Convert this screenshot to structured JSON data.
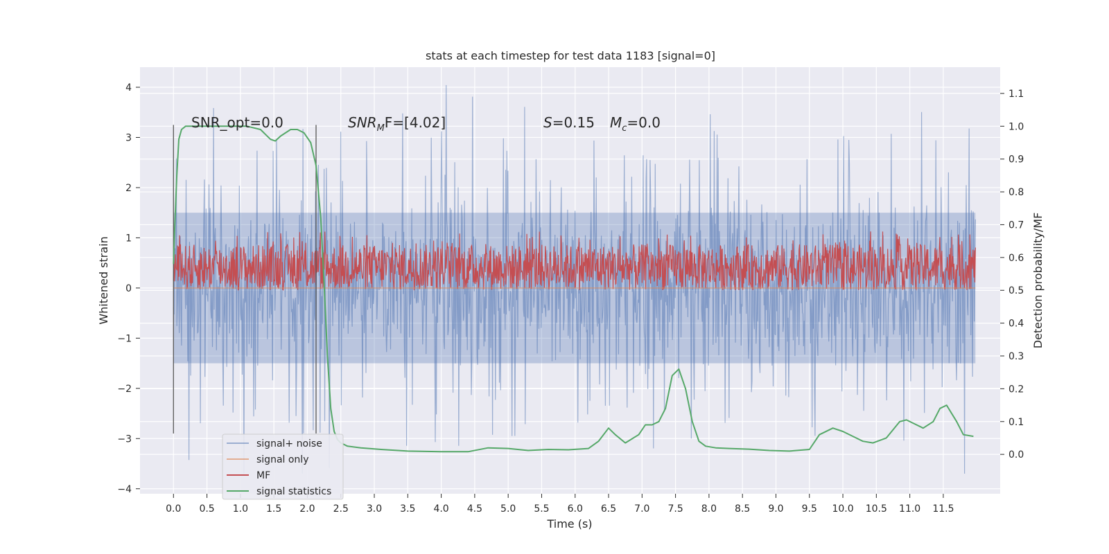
{
  "chart_data": {
    "type": "line",
    "title": "stats at each timestep for test data 1183 [signal=0]",
    "xlabel": "Time (s)",
    "ylabel": "Whitened strain",
    "y2label": "Detection probability/MF",
    "xlim": [
      -0.5,
      12.35
    ],
    "ylim": [
      -4.1,
      4.4
    ],
    "y2lim": [
      -0.12,
      1.18
    ],
    "x_ticks": [
      "0.0",
      "0.5",
      "1.0",
      "1.5",
      "2.0",
      "2.5",
      "3.0",
      "3.5",
      "4.0",
      "4.5",
      "5.0",
      "5.5",
      "6.0",
      "6.5",
      "7.0",
      "7.5",
      "8.0",
      "8.5",
      "9.0",
      "9.5",
      "10.0",
      "10.5",
      "11.0",
      "11.5"
    ],
    "y_ticks": [
      "4",
      "3",
      "2",
      "1",
      "0",
      "−1",
      "−2",
      "−3",
      "−4"
    ],
    "y2_ticks": [
      "1.1",
      "1.0",
      "0.9",
      "0.8",
      "0.7",
      "0.6",
      "0.5",
      "0.4",
      "0.3",
      "0.2",
      "0.1",
      "0.0"
    ],
    "grid": true,
    "legend_position": "lower-left",
    "background_color": "#eaeaf2",
    "annotations": {
      "snr_opt": "SNR_opt=0.0",
      "snr_mf_italic": "SNR",
      "snr_mf_sub": "M",
      "snr_mf_rest": "F=[4.02]",
      "s_italic": "S",
      "s_value": "=0.15",
      "mc_italic": "M",
      "mc_sub": "c",
      "mc_value": "=0.0"
    },
    "markers_x": [
      0.0,
      2.13
    ],
    "series": [
      {
        "name": "signal+ noise",
        "color": "#4c72b0",
        "axis": "left",
        "style": "noise",
        "amplitude_typical": 2.0,
        "amplitude_max": 4.1,
        "x_range": [
          0.0,
          11.98
        ]
      },
      {
        "name": "signal only",
        "color": "#dd8452",
        "axis": "left",
        "style": "flat",
        "value": 0.0
      },
      {
        "name": "MF",
        "color": "#c44e52",
        "axis": "right",
        "style": "band",
        "low": 0.5,
        "high": 0.64,
        "peak": 0.68,
        "x_range": [
          0.0,
          11.98
        ]
      },
      {
        "name": "signal statistics",
        "color": "#55a868",
        "axis": "right",
        "style": "line",
        "x": [
          0.0,
          0.02,
          0.05,
          0.08,
          0.12,
          0.18,
          0.3,
          0.5,
          0.8,
          1.1,
          1.3,
          1.45,
          1.52,
          1.6,
          1.75,
          1.85,
          1.95,
          2.05,
          2.13,
          2.2,
          2.25,
          2.3,
          2.35,
          2.4,
          2.45,
          2.5,
          2.6,
          2.8,
          3.1,
          3.5,
          4.0,
          4.4,
          4.7,
          5.0,
          5.3,
          5.6,
          5.9,
          6.2,
          6.35,
          6.5,
          6.6,
          6.75,
          6.95,
          7.05,
          7.15,
          7.25,
          7.35,
          7.45,
          7.55,
          7.65,
          7.75,
          7.85,
          7.95,
          8.1,
          8.3,
          8.6,
          8.9,
          9.2,
          9.5,
          9.65,
          9.85,
          10.0,
          10.15,
          10.3,
          10.45,
          10.65,
          10.85,
          10.95,
          11.05,
          11.2,
          11.35,
          11.45,
          11.55,
          11.7,
          11.8,
          11.95
        ],
        "y": [
          0.58,
          0.7,
          0.85,
          0.96,
          0.99,
          1.0,
          1.0,
          1.0,
          1.0,
          1.0,
          0.99,
          0.96,
          0.955,
          0.97,
          0.99,
          0.99,
          0.98,
          0.95,
          0.88,
          0.72,
          0.52,
          0.3,
          0.14,
          0.07,
          0.045,
          0.035,
          0.025,
          0.02,
          0.015,
          0.01,
          0.008,
          0.008,
          0.02,
          0.018,
          0.012,
          0.015,
          0.014,
          0.018,
          0.04,
          0.08,
          0.06,
          0.035,
          0.06,
          0.09,
          0.09,
          0.1,
          0.14,
          0.24,
          0.26,
          0.2,
          0.1,
          0.04,
          0.025,
          0.02,
          0.018,
          0.016,
          0.012,
          0.01,
          0.015,
          0.06,
          0.08,
          0.07,
          0.055,
          0.04,
          0.035,
          0.05,
          0.1,
          0.105,
          0.095,
          0.08,
          0.1,
          0.14,
          0.15,
          0.1,
          0.06,
          0.055
        ]
      }
    ]
  }
}
